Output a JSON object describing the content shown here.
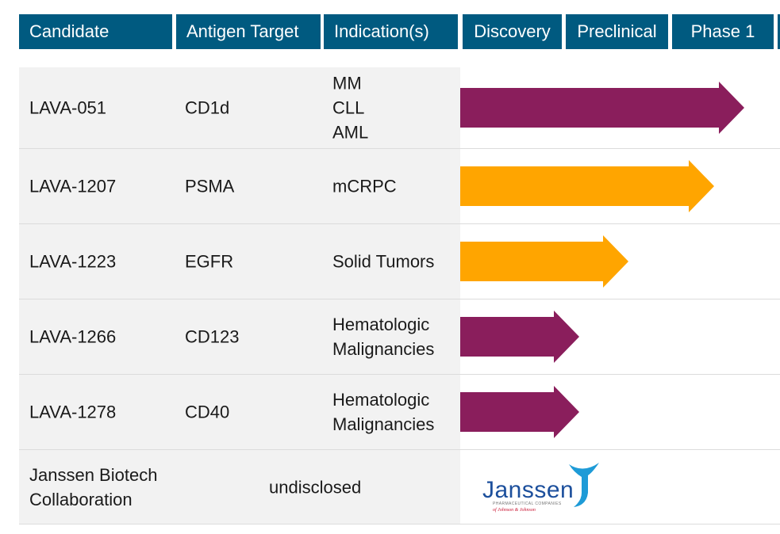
{
  "headers": [
    "Candidate",
    "Antigen Target",
    "Indication(s)",
    "Discovery",
    "Preclinical",
    "Phase 1"
  ],
  "colors": {
    "header_bg": "#005a80",
    "purple": "#8a1e5c",
    "orange": "#ffa500"
  },
  "stage_order": [
    "Discovery",
    "Preclinical",
    "Phase 1"
  ],
  "rows": [
    {
      "candidate": [
        "LAVA-051"
      ],
      "target": "CD1d",
      "indication": [
        "MM",
        "CLL",
        "AML"
      ],
      "progress_color": "purple",
      "progress_stage": "Phase 1"
    },
    {
      "candidate": [
        "LAVA-1207"
      ],
      "target": "PSMA",
      "indication": [
        "mCRPC"
      ],
      "progress_color": "orange",
      "progress_stage": "Phase 1"
    },
    {
      "candidate": [
        "LAVA-1223"
      ],
      "target": "EGFR",
      "indication": [
        "Solid Tumors"
      ],
      "progress_color": "orange",
      "progress_stage": "Preclinical"
    },
    {
      "candidate": [
        "LAVA-1266"
      ],
      "target": "CD123",
      "indication": [
        "Hematologic",
        "Malignancies"
      ],
      "progress_color": "purple",
      "progress_stage": "Discovery"
    },
    {
      "candidate": [
        "LAVA-1278"
      ],
      "target": "CD40",
      "indication": [
        "Hematologic",
        "Malignancies"
      ],
      "progress_color": "purple",
      "progress_stage": "Discovery"
    }
  ],
  "janssen_row": {
    "candidate": [
      "Janssen Biotech",
      "Collaboration"
    ],
    "detail": "undisclosed"
  },
  "logo": {
    "word": "Janssen",
    "sub": "PHARMACEUTICAL COMPANIES",
    "parent": "of Johnson & Johnson",
    "icon": "janssen-figure-icon"
  }
}
